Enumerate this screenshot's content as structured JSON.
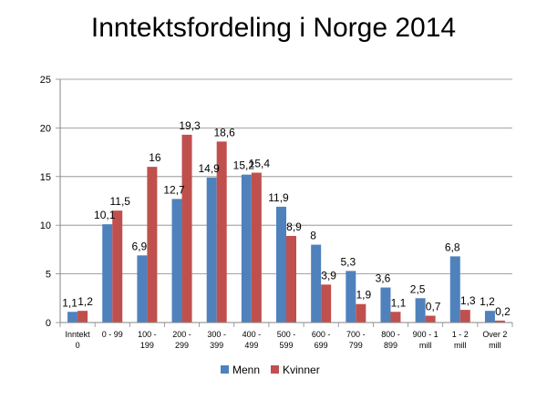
{
  "chart_data": {
    "type": "bar",
    "title": "Inntektsfordeling i Norge 2014",
    "xlabel": "",
    "ylabel": "",
    "ylim": [
      0,
      25
    ],
    "yticks": [
      "0",
      "5",
      "10",
      "15",
      "20",
      "25"
    ],
    "grid": true,
    "legend_position": "bottom",
    "categories": [
      [
        "Inntekt",
        "0"
      ],
      [
        "0 - 99"
      ],
      [
        "100 -",
        "199"
      ],
      [
        "200 -",
        "299"
      ],
      [
        "300 -",
        "399"
      ],
      [
        "400 -",
        "499"
      ],
      [
        "500 -",
        "599"
      ],
      [
        "600 -",
        "699"
      ],
      [
        "700 -",
        "799"
      ],
      [
        "800 -",
        "899"
      ],
      [
        "900 - 1",
        "mill"
      ],
      [
        "1 - 2",
        "mill"
      ],
      [
        "Over 2",
        "mill"
      ]
    ],
    "series": [
      {
        "name": "Menn",
        "color": "#4f81bd",
        "values": [
          1.1,
          10.1,
          6.9,
          12.7,
          14.9,
          15.2,
          11.9,
          8,
          5.3,
          3.6,
          2.5,
          6.8,
          1.2
        ],
        "labels": [
          "1,1",
          "10,1",
          "6,9",
          "12,7",
          "14,9",
          "15,2",
          "11,9",
          "8",
          "5,3",
          "3,6",
          "2,5",
          "6,8",
          "1,2"
        ]
      },
      {
        "name": "Kvinner",
        "color": "#c0504d",
        "values": [
          1.2,
          11.5,
          16,
          19.3,
          18.6,
          15.4,
          8.9,
          3.9,
          1.9,
          1.1,
          0.7,
          1.3,
          0.2
        ],
        "labels": [
          "1,2",
          "11,5",
          "16",
          "19,3",
          "18,6",
          "15,4",
          "8,9",
          "3,9",
          "1,9",
          "1,1",
          "0,7",
          "1,3",
          "0,2"
        ]
      }
    ]
  }
}
